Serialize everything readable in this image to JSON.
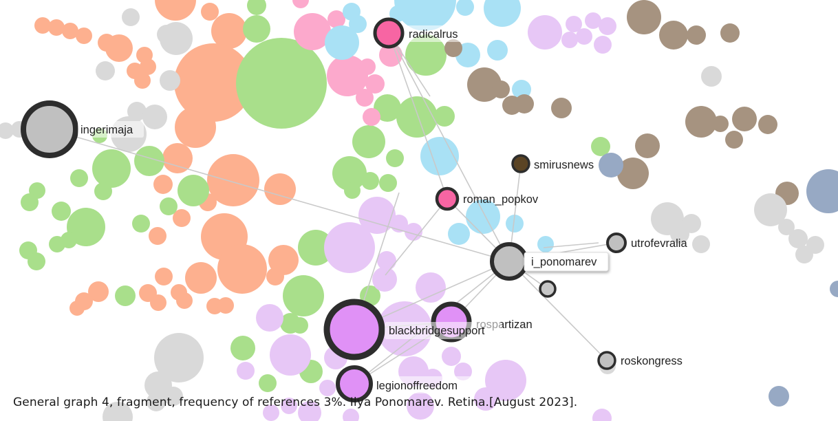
{
  "caption": "General graph 4, fragment, frequency of references 3%. Ilya Ponomarev. Retina.[August 2023].",
  "colors": {
    "orange": "#fdb08f",
    "green": "#a9df8b",
    "pink": "#fca9cc",
    "lightblue": "#a9e1f5",
    "lavender": "#e7c7f6",
    "brown": "#a69380",
    "gray": "#d9d9d9",
    "slate": "#97a9c4",
    "ring": "#2d2d2d",
    "edge": "#c9c9c9"
  },
  "labels": {
    "radicalrus": "radicalrus",
    "ingerimaja": "ingerimaja",
    "smirusnews": "smirusnews",
    "roman_popkov": "roman_popkov",
    "utrofevralia": "utrofevralia",
    "i_ponomarev": "i_ponomarev",
    "rospartizan": "rospartizan",
    "blackbridgesupport": "blackbridgesupport",
    "roskongress": "roskongress",
    "legionoffreedom": "legionoffreedom"
  },
  "highlighted_nodes": [
    {
      "id": "radicalrus",
      "label": "radicalrus",
      "fill": "#f765a3"
    },
    {
      "id": "ingerimaja",
      "label": "ingerimaja",
      "fill": "#c0c0c0"
    },
    {
      "id": "smirusnews",
      "label": "smirusnews",
      "fill": "#5b4424"
    },
    {
      "id": "roman_popkov",
      "label": "roman_popkov",
      "fill": "#f765a3"
    },
    {
      "id": "utrofevralia",
      "label": "utrofevralia",
      "fill": "#c0c0c0"
    },
    {
      "id": "i_ponomarev",
      "label": "i_ponomarev",
      "fill": "#c0c0c0"
    },
    {
      "id": "rospartizan",
      "label": "rospartizan",
      "fill": "#e091f6"
    },
    {
      "id": "blackbridgesupport",
      "label": "blackbridgesupport",
      "fill": "#e091f6"
    },
    {
      "id": "roskongress",
      "label": "roskongress",
      "fill": "#c0c0c0"
    },
    {
      "id": "legionoffreedom",
      "label": "legionoffreedom",
      "fill": "#e091f6"
    }
  ]
}
